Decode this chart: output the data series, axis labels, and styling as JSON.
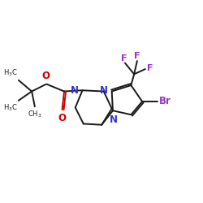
{
  "bg_color": "#ffffff",
  "bond_color": "#1a1a1a",
  "N_color": "#3333cc",
  "O_color": "#cc0000",
  "Br_color": "#9933cc",
  "F_color": "#9933cc",
  "lw": 1.4,
  "dbo": 0.08,
  "xlim": [
    0,
    10
  ],
  "ylim": [
    0,
    10
  ]
}
